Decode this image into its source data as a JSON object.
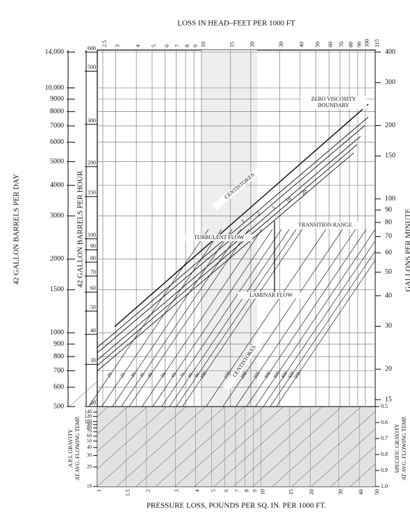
{
  "chart_data": {
    "type": "nomograph",
    "top_axis": {
      "title": "LOSS IN HEAD–FEET PER 1000 FT",
      "lim": [
        2.5,
        115
      ],
      "ticks": [
        2.5,
        3,
        4,
        5,
        6,
        7,
        8,
        9,
        10,
        15,
        20,
        30,
        40,
        50,
        60,
        70,
        80,
        90,
        100,
        115
      ]
    },
    "bottom_axis": {
      "title": "PRESSURE LOSS, POUNDS PER SQ. IN. PER 1000 FT.",
      "lim": [
        1,
        50
      ],
      "ticks": [
        1,
        1.5,
        2,
        3,
        4,
        5,
        6,
        7,
        8,
        9,
        10,
        15,
        20,
        30,
        40,
        50
      ]
    },
    "left_axis": {
      "title": "42 GALLON BARRELS PER DAY",
      "lim": [
        500,
        14000
      ],
      "ticks": [
        500,
        600,
        700,
        800,
        900,
        1000,
        1500,
        2000,
        3000,
        4000,
        5000,
        6000,
        7000,
        8000,
        9000,
        {
          "value": 10000,
          "label": "10,000"
        },
        {
          "value": 14000,
          "label": "14,000"
        }
      ]
    },
    "inner_left_axis": {
      "title": "42 GALLON BARRELS PER HOUR",
      "lim": [
        20,
        600
      ],
      "ticks": [
        20,
        30,
        40,
        50,
        60,
        70,
        80,
        90,
        100,
        150,
        200,
        300,
        500,
        600
      ]
    },
    "right_axis": {
      "title": "GALLONS PER MINUTE",
      "lim": [
        15,
        400
      ],
      "ticks": [
        15,
        20,
        30,
        40,
        50,
        60,
        70,
        80,
        90,
        100,
        150,
        200,
        300,
        400
      ]
    },
    "api_axis": {
      "title": "A.P.I. GRAVITY",
      "subtitle": "AT AVG. FLOWING TEMP.",
      "lim": [
        10,
        140
      ],
      "ticks": [
        10,
        20,
        30,
        40,
        50,
        60,
        70,
        80,
        90,
        100,
        120,
        140
      ]
    },
    "sg_axis": {
      "title": "SPECIFIC GRAVITY",
      "subtitle": "AT AVG. FLOWING TEMP.",
      "lim": [
        0.5,
        1
      ],
      "ticks": [
        0.5,
        0.6,
        0.7,
        0.8,
        0.9,
        {
          "value": 1,
          "label": "1.0"
        }
      ]
    },
    "turbulent_viscosities": [
      1,
      2,
      5,
      10,
      20
    ],
    "laminar_viscosities": [
      20,
      25,
      30,
      35,
      40,
      50,
      60,
      70,
      80,
      90,
      100,
      150,
      200,
      250,
      300,
      350,
      400,
      450,
      500
    ],
    "annotations": [
      "ZERO VISCOSITY",
      "BOUNDARY",
      "CENTISTOKES",
      "TRANSITION RANGE",
      "TURBULENT FLOW",
      "LAMINAR FLOW",
      "CENTISTOKES"
    ]
  }
}
